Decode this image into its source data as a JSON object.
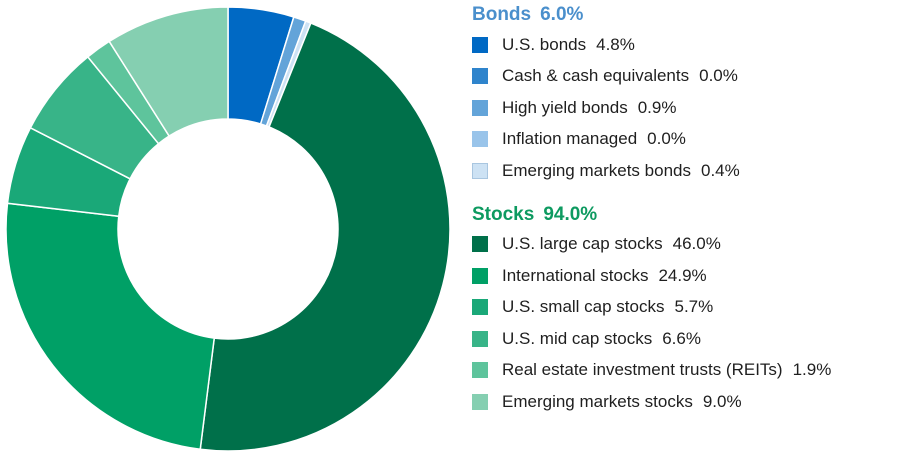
{
  "chart_data": {
    "type": "pie",
    "donut": true,
    "groups": [
      {
        "name": "Bonds",
        "value_label": "6.0%",
        "color": "#4a8fcc",
        "items": [
          {
            "name": "U.S. bonds",
            "value": 4.8,
            "value_label": "4.8%",
            "color": "#0069c4"
          },
          {
            "name": "Cash & cash equivalents",
            "value": 0.0,
            "value_label": "0.0%",
            "color": "#2f84cc"
          },
          {
            "name": "High yield bonds",
            "value": 0.9,
            "value_label": "0.9%",
            "color": "#63a4d9"
          },
          {
            "name": "Inflation managed",
            "value": 0.0,
            "value_label": "0.0%",
            "color": "#99c4ea"
          },
          {
            "name": "Emerging markets bonds",
            "value": 0.4,
            "value_label": "0.4%",
            "color": "#cde2f4"
          }
        ]
      },
      {
        "name": "Stocks",
        "value_label": "94.0%",
        "color": "#0d9a60",
        "items": [
          {
            "name": "U.S. large cap stocks",
            "value": 46.0,
            "value_label": "46.0%",
            "color": "#00704a"
          },
          {
            "name": "International stocks",
            "value": 24.9,
            "value_label": "24.9%",
            "color": "#00a066"
          },
          {
            "name": "U.S. small cap stocks",
            "value": 5.7,
            "value_label": "5.7%",
            "color": "#1aa878"
          },
          {
            "name": "U.S. mid cap stocks",
            "value": 6.6,
            "value_label": "6.6%",
            "color": "#38b488"
          },
          {
            "name": "Real estate investment trusts (REITs)",
            "value": 1.9,
            "value_label": "1.9%",
            "color": "#5ec49c"
          },
          {
            "name": "Emerging markets stocks",
            "value": 9.0,
            "value_label": "9.0%",
            "color": "#85cfb1"
          }
        ]
      }
    ],
    "legend_position": "right"
  }
}
